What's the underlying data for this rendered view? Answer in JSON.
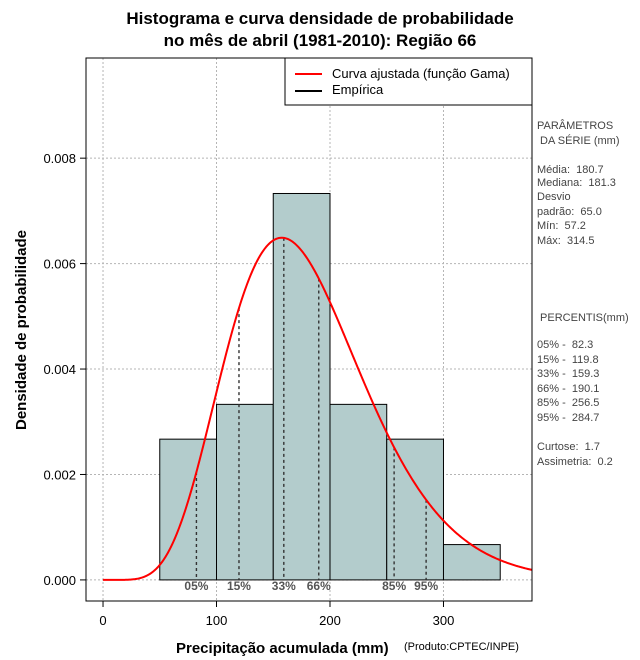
{
  "title_line1": "Histograma e curva densidade de probabilidade",
  "title_line2": "no mês de abril (1981-2010): Região 66",
  "source_note": "(Produto:CPTEC/INPE)",
  "chart_data": {
    "type": "bar",
    "xlabel": "Precipitação acumulada (mm)",
    "ylabel": "Densidade de probabilidade",
    "xlim": [
      -15,
      378
    ],
    "ylim": [
      -0.0004,
      0.0099
    ],
    "x_ticks": [
      0,
      100,
      200,
      300
    ],
    "y_ticks": [
      0.0,
      0.002,
      0.004,
      0.006,
      0.008
    ],
    "y_tick_labels": [
      "0.000",
      "0.002",
      "0.004",
      "0.006",
      "0.008"
    ],
    "grid": true,
    "bins": [
      {
        "start": 50,
        "end": 100,
        "density": 0.00267
      },
      {
        "start": 100,
        "end": 150,
        "density": 0.00333
      },
      {
        "start": 150,
        "end": 200,
        "density": 0.00733
      },
      {
        "start": 200,
        "end": 250,
        "density": 0.00333
      },
      {
        "start": 250,
        "end": 300,
        "density": 0.00267
      },
      {
        "start": 300,
        "end": 350,
        "density": 0.00067
      }
    ],
    "bar_color": "#b3cccc",
    "fitted_curve": {
      "name": "Curva ajustada (função Gama)",
      "color": "#ff0000",
      "distribution": "gamma",
      "shape": 7.73,
      "scale": 23.4
    },
    "empirical": {
      "name": "Empírica",
      "color": "#000000"
    },
    "legend_position": "top-right",
    "percentile_markers": [
      {
        "label": "05%",
        "x": 82.3
      },
      {
        "label": "15%",
        "x": 119.8
      },
      {
        "label": "33%",
        "x": 159.3
      },
      {
        "label": "66%",
        "x": 190.1
      },
      {
        "label": "85%",
        "x": 256.5
      },
      {
        "label": "95%",
        "x": 284.7
      }
    ]
  },
  "parameters_panel": {
    "heading1": "PARÂMETROS",
    "heading2": " DA SÉRIE (mm)",
    "media": "Média:  180.7",
    "mediana": "Mediana:  181.3",
    "desvio1": "Desvio",
    "desvio2": "padrão:  65.0",
    "min": "Mín:  57.2",
    "max": "Máx:  314.5"
  },
  "percentiles_panel": {
    "heading": " PERCENTIS(mm)",
    "p05": "05% -  82.3",
    "p15": "15% -  119.8",
    "p33": "33% -  159.3",
    "p66": "66% -  190.1",
    "p85": "85% -  256.5",
    "p95": "95% -  284.7",
    "curtose": "Curtose:  1.7",
    "assimetria": "Assimetria:  0.2"
  }
}
